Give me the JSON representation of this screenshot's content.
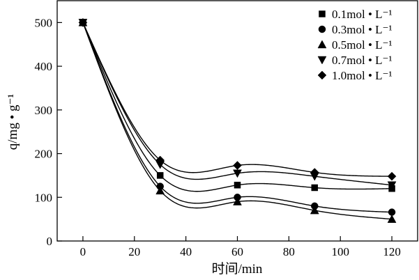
{
  "chart_data": {
    "type": "line",
    "title": "",
    "xlabel": "时间/min",
    "ylabel": "q/mg • g⁻¹",
    "xlim": [
      -10,
      130
    ],
    "ylim": [
      0,
      550
    ],
    "xticks": [
      0,
      20,
      40,
      60,
      80,
      100,
      120
    ],
    "yticks": [
      0,
      100,
      200,
      300,
      400,
      500
    ],
    "x": [
      0,
      30,
      60,
      90,
      120
    ],
    "grid": false,
    "legend_position": "top-right",
    "series": [
      {
        "name": "0.1mol • L⁻¹",
        "marker": "square",
        "values": [
          500,
          150,
          128,
          122,
          120
        ]
      },
      {
        "name": "0.3mol • L⁻¹",
        "marker": "circle",
        "values": [
          500,
          125,
          100,
          80,
          66
        ]
      },
      {
        "name": "0.5mol • L⁻¹",
        "marker": "triangle-up",
        "values": [
          500,
          115,
          90,
          70,
          50
        ]
      },
      {
        "name": "0.7mol • L⁻¹",
        "marker": "triangle-down",
        "values": [
          500,
          175,
          155,
          148,
          128
        ]
      },
      {
        "name": "1.0mol • L⁻¹",
        "marker": "diamond",
        "values": [
          500,
          185,
          173,
          157,
          148
        ]
      }
    ]
  }
}
